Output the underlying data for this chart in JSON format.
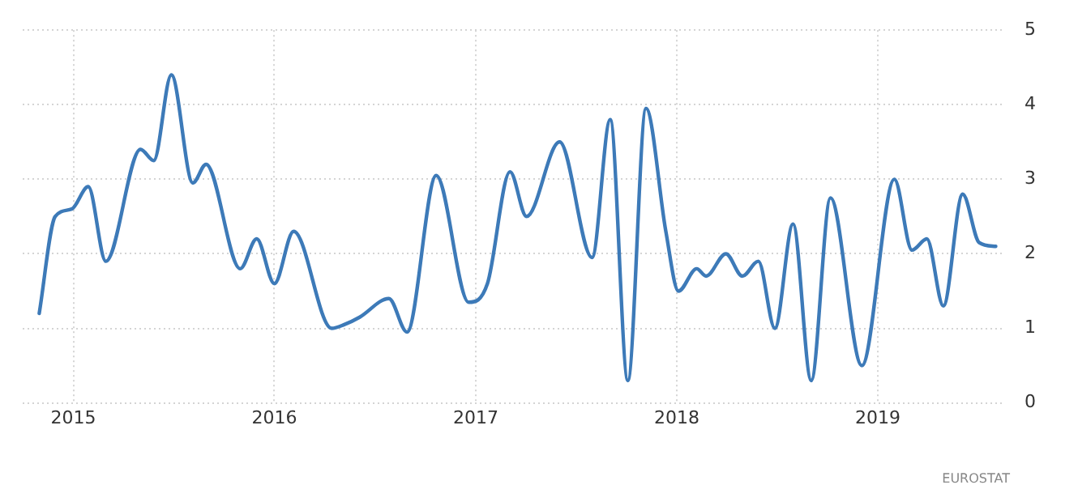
{
  "chart_data": {
    "type": "line",
    "x": [
      "2014-10-31",
      "2014-11-29",
      "2014-12-29",
      "2015-01-28",
      "2015-03-01",
      "2015-05-03",
      "2015-05-27",
      "2015-06-28",
      "2015-08-06",
      "2015-08-30",
      "2015-10-31",
      "2015-11-30",
      "2016-01-01",
      "2016-02-05",
      "2016-04-14",
      "2016-05-07",
      "2016-06-04",
      "2016-07-27",
      "2016-08-29",
      "2016-10-21",
      "2016-12-19",
      "2017-01-22",
      "2017-03-04",
      "2017-04-03",
      "2017-06-02",
      "2017-07-31",
      "2017-09-02",
      "2017-10-04",
      "2017-11-06",
      "2017-12-12",
      "2018-01-04",
      "2018-02-06",
      "2018-02-23",
      "2018-03-31",
      "2018-04-30",
      "2018-05-29",
      "2018-06-28",
      "2018-07-31",
      "2018-09-02",
      "2018-10-07",
      "2018-12-03",
      "2019-01-31",
      "2019-03-04",
      "2019-03-31",
      "2019-04-30",
      "2019-06-04",
      "2019-07-04",
      "2019-08-03"
    ],
    "series": [
      {
        "color": "#3d7ab8",
        "values": [
          1.2,
          2.5,
          2.6,
          2.9,
          1.9,
          3.4,
          3.25,
          4.4,
          2.95,
          3.2,
          1.8,
          2.2,
          1.6,
          2.3,
          1.0,
          1.05,
          1.15,
          1.4,
          0.95,
          3.05,
          1.35,
          1.6,
          3.1,
          2.5,
          3.5,
          1.95,
          3.8,
          0.3,
          3.95,
          2.3,
          1.5,
          1.8,
          1.7,
          2.0,
          1.7,
          1.9,
          1.0,
          2.4,
          0.3,
          2.75,
          0.5,
          3.0,
          2.05,
          2.2,
          1.3,
          2.8,
          2.15,
          2.1
        ]
      }
    ],
    "xlim": [
      "2014-10-01",
      "2019-08-20"
    ],
    "xticks": [
      {
        "value": "2015-01-01",
        "label": "2015"
      },
      {
        "value": "2016-01-01",
        "label": "2016"
      },
      {
        "value": "2017-01-01",
        "label": "2017"
      },
      {
        "value": "2018-01-01",
        "label": "2018"
      },
      {
        "value": "2019-01-01",
        "label": "2019"
      }
    ],
    "ylim": [
      0,
      5
    ],
    "yticks": [
      0,
      1,
      2,
      3,
      4,
      5
    ],
    "grid": true,
    "legend": false,
    "marker": "none",
    "line_style": "solid",
    "annotations": [
      "EUROSTAT"
    ]
  }
}
